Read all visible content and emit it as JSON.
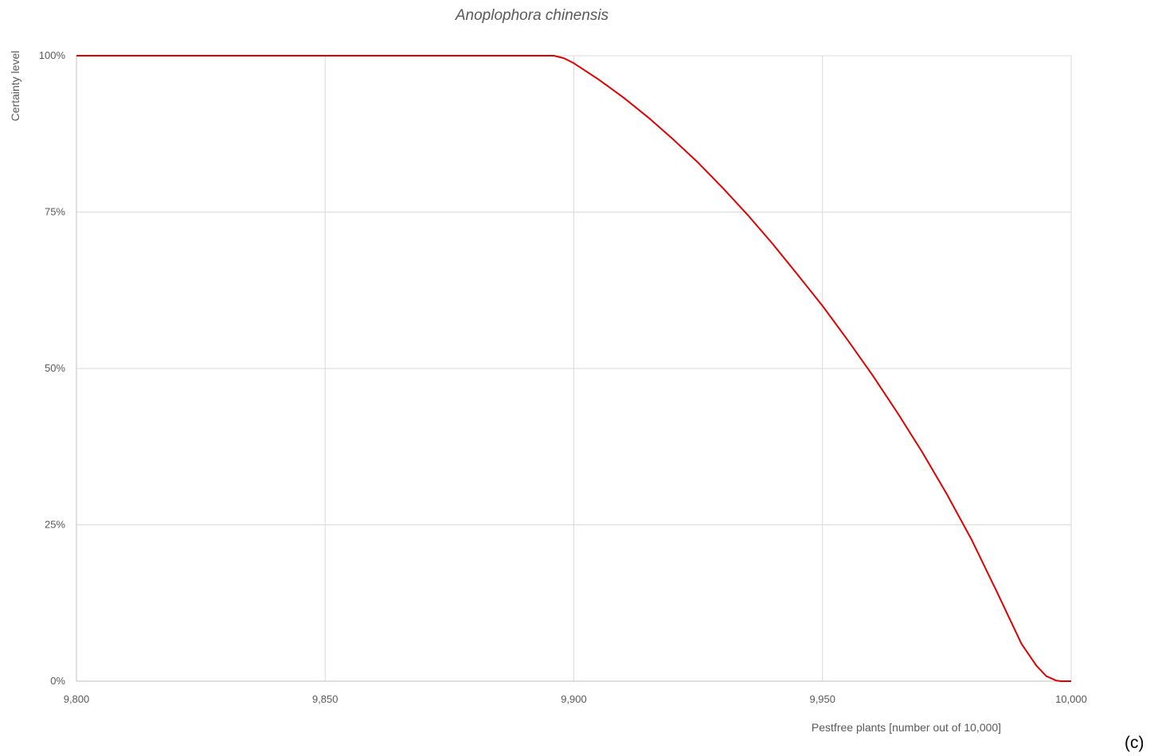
{
  "chart_data": {
    "type": "line",
    "title": "Anoplophora chinensis",
    "xlabel": "Pestfree plants [number out of 10,000]",
    "ylabel": "Certainty level",
    "xlim": [
      9800,
      10000
    ],
    "ylim": [
      0,
      100
    ],
    "x_ticks": [
      {
        "value": 9800,
        "label": "9,800"
      },
      {
        "value": 9850,
        "label": "9,850"
      },
      {
        "value": 9900,
        "label": "9,900"
      },
      {
        "value": 9950,
        "label": "9,950"
      },
      {
        "value": 10000,
        "label": "10,000"
      }
    ],
    "y_ticks": [
      {
        "value": 0,
        "label": "0%"
      },
      {
        "value": 25,
        "label": "25%"
      },
      {
        "value": 50,
        "label": "50%"
      },
      {
        "value": 75,
        "label": "75%"
      },
      {
        "value": 100,
        "label": "100%"
      }
    ],
    "grid": true,
    "series": [
      {
        "color": "#e00000",
        "x": [
          9800,
          9850,
          9896,
          9898,
          9900,
          9905,
          9910,
          9915,
          9920,
          9925,
          9930,
          9935,
          9940,
          9945,
          9950,
          9955,
          9960,
          9965,
          9970,
          9975,
          9980,
          9985,
          9990,
          9993,
          9995,
          9997,
          9998,
          10000
        ],
        "y": [
          100,
          100,
          100,
          99.6,
          98.8,
          96.2,
          93.3,
          90.1,
          86.6,
          82.9,
          78.8,
          74.5,
          69.9,
          65.0,
          60.0,
          54.6,
          49.0,
          43.0,
          36.7,
          29.9,
          22.6,
          14.4,
          6.0,
          2.5,
          0.8,
          0.1,
          0,
          0
        ]
      }
    ]
  },
  "corner_label": "(c)"
}
